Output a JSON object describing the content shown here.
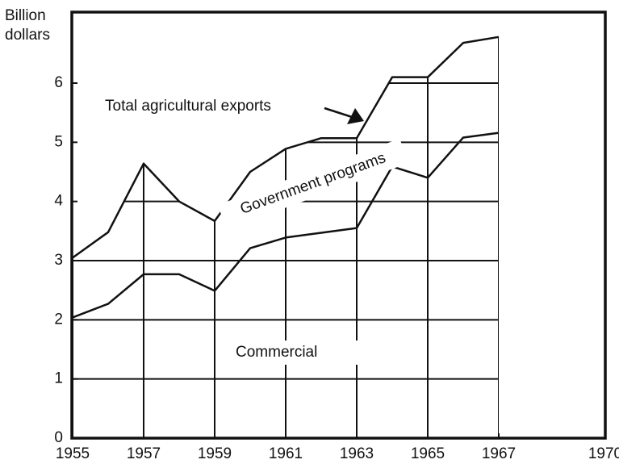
{
  "chart_data": {
    "type": "line",
    "y_label": [
      "Billion",
      "dollars"
    ],
    "x": [
      1955,
      1956,
      1957,
      1958,
      1959,
      1960,
      1961,
      1962,
      1963,
      1964,
      1965,
      1966,
      1967
    ],
    "series": [
      {
        "name": "Total agricultural exports",
        "color": "#111111",
        "values": [
          3.05,
          3.48,
          4.64,
          4.0,
          3.67,
          4.5,
          4.89,
          5.07,
          5.07,
          6.1,
          6.1,
          6.68,
          6.78
        ]
      },
      {
        "name": "Commercial",
        "color": "#111111",
        "values": [
          2.04,
          2.27,
          2.77,
          2.77,
          2.49,
          3.21,
          3.39,
          3.47,
          3.55,
          4.59,
          4.4,
          5.08,
          5.16
        ]
      }
    ],
    "annotations": [
      "Government programs"
    ],
    "xlim": [
      1955,
      1970
    ],
    "xticks": [
      1955,
      1957,
      1959,
      1961,
      1963,
      1965,
      1967,
      1970
    ],
    "ylim": [
      0,
      7.2
    ],
    "yticks": [
      0,
      1,
      2,
      3,
      4,
      5,
      6
    ],
    "grid": true
  }
}
